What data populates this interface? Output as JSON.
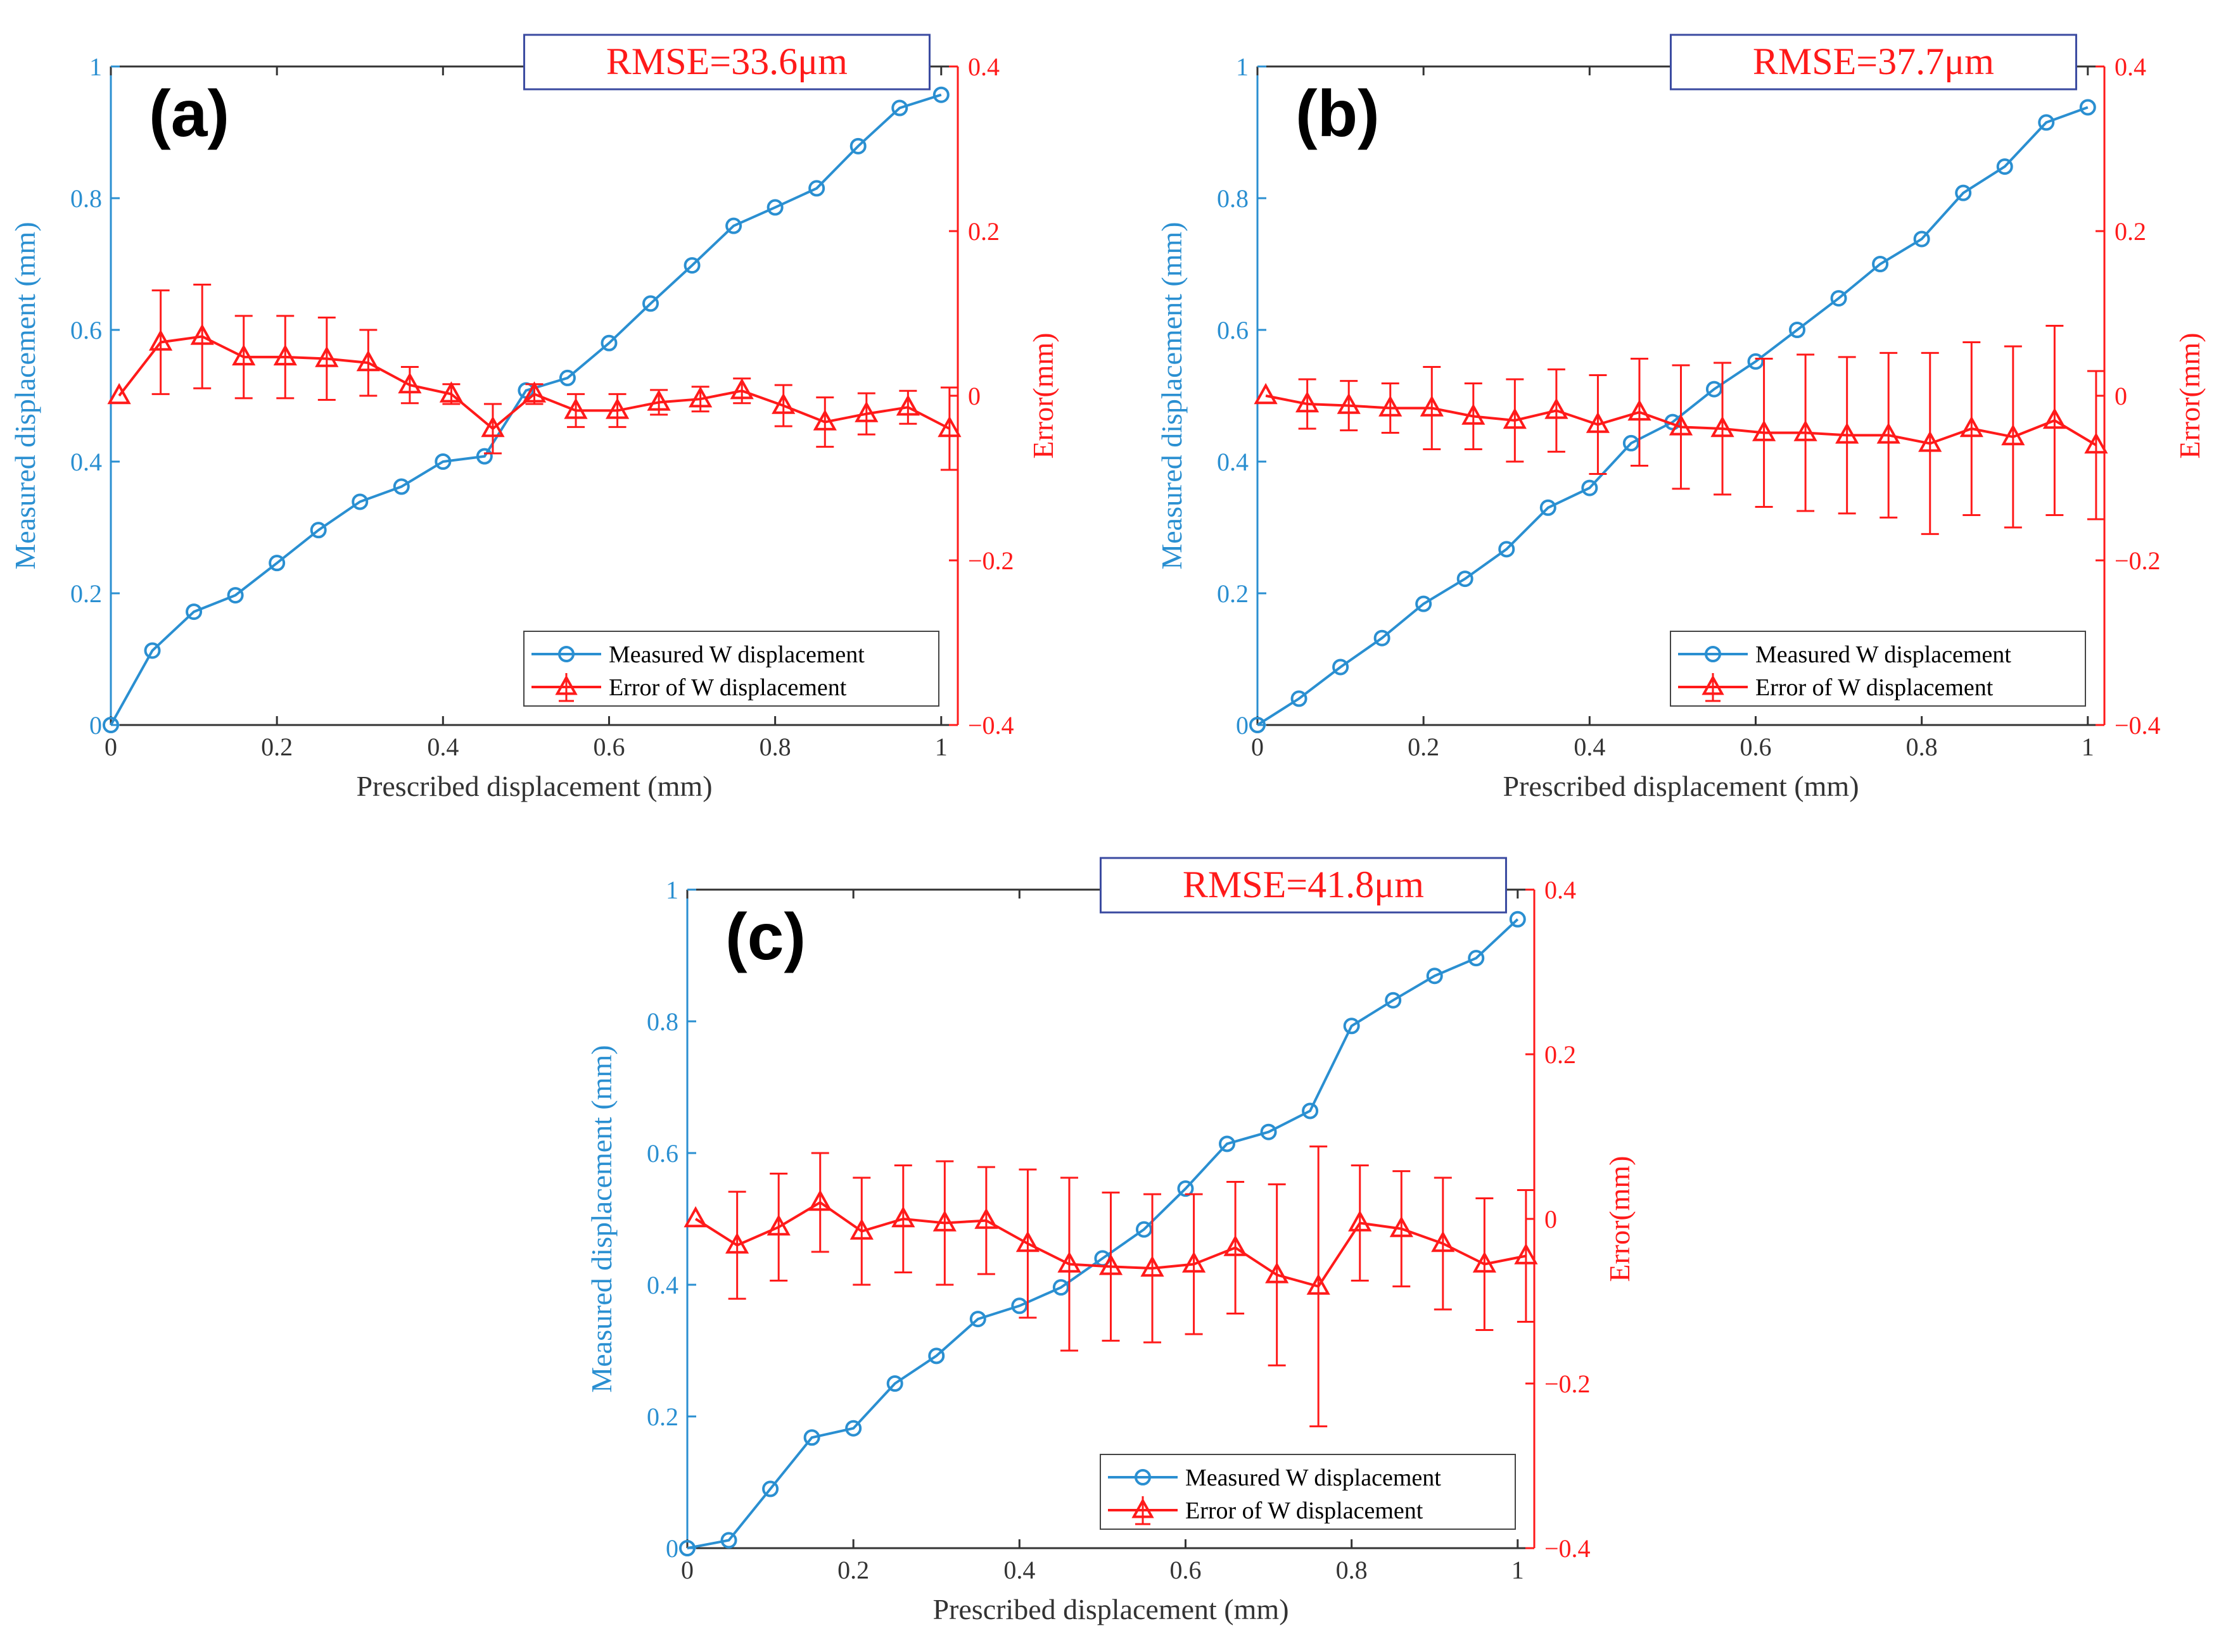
{
  "colors": {
    "measured": "#2a8fd1",
    "error": "#ff1a1a",
    "axis": "#333333",
    "legend_border": "#444444",
    "rmse_border": "#3a4aa0",
    "text": "#333333"
  },
  "chart_data": [
    {
      "panel_label": "(a)",
      "type": "line",
      "rmse_label": "RMSE=33.6μm",
      "xlabel": "Prescribed displacement (mm)",
      "ylabel_left": "Measured displacement (mm)",
      "ylabel_right": "Error(mm)",
      "xlim": [
        0,
        1.02
      ],
      "ylim_left": [
        0,
        1
      ],
      "ylim_right": [
        -0.4,
        0.4
      ],
      "x_ticks": [
        "0",
        "0.2",
        "0.4",
        "0.6",
        "0.8",
        "1"
      ],
      "y_left_ticks": [
        "0",
        "0.2",
        "0.4",
        "0.6",
        "0.8",
        "1"
      ],
      "y_right_ticks": [
        "−0.4",
        "−0.2",
        "0",
        "0.2",
        "0.4"
      ],
      "legend": {
        "position": "bottom-right",
        "entries": [
          "Measured W displacement",
          "Error of W displacement"
        ]
      },
      "x": [
        0,
        0.05,
        0.1,
        0.15,
        0.2,
        0.25,
        0.3,
        0.35,
        0.4,
        0.45,
        0.5,
        0.55,
        0.6,
        0.65,
        0.7,
        0.75,
        0.8,
        0.85,
        0.9,
        0.95,
        1.0
      ],
      "series": [
        {
          "name": "Measured W displacement",
          "axis": "left",
          "marker": "circle",
          "values": [
            0.0,
            0.113,
            0.172,
            0.197,
            0.246,
            0.296,
            0.339,
            0.362,
            0.4,
            0.408,
            0.508,
            0.527,
            0.58,
            0.64,
            0.698,
            0.758,
            0.786,
            0.815,
            0.879,
            0.937,
            0.957
          ]
        },
        {
          "name": "Error of W displacement",
          "axis": "right",
          "marker": "triangle",
          "x_offset": 0.01,
          "values": [
            0.0,
            0.065,
            0.072,
            0.047,
            0.047,
            0.045,
            0.04,
            0.013,
            0.002,
            -0.04,
            0.002,
            -0.018,
            -0.018,
            -0.008,
            -0.004,
            0.006,
            -0.012,
            -0.032,
            -0.022,
            -0.014,
            -0.04
          ],
          "error": [
            0.0,
            0.063,
            0.063,
            0.05,
            0.05,
            0.05,
            0.04,
            0.022,
            0.012,
            0.03,
            0.012,
            0.02,
            0.02,
            0.015,
            0.015,
            0.015,
            0.025,
            0.03,
            0.025,
            0.02,
            0.05
          ]
        }
      ]
    },
    {
      "panel_label": "(b)",
      "type": "line",
      "rmse_label": "RMSE=37.7μm",
      "xlabel": "Prescribed displacement (mm)",
      "ylabel_left": "Measured displacement (mm)",
      "ylabel_right": "Error(mm)",
      "xlim": [
        0,
        1.02
      ],
      "ylim_left": [
        0,
        1
      ],
      "ylim_right": [
        -0.4,
        0.4
      ],
      "x_ticks": [
        "0",
        "0.2",
        "0.4",
        "0.6",
        "0.8",
        "1"
      ],
      "y_left_ticks": [
        "0",
        "0.2",
        "0.4",
        "0.6",
        "0.8",
        "1"
      ],
      "y_right_ticks": [
        "−0.4",
        "−0.2",
        "0",
        "0.2",
        "0.4"
      ],
      "legend": {
        "position": "bottom-right",
        "entries": [
          "Measured W displacement",
          "Error of W displacement"
        ]
      },
      "x": [
        0,
        0.05,
        0.1,
        0.15,
        0.2,
        0.25,
        0.3,
        0.35,
        0.4,
        0.45,
        0.5,
        0.55,
        0.6,
        0.65,
        0.7,
        0.75,
        0.8,
        0.85,
        0.9,
        0.95,
        1.0
      ],
      "series": [
        {
          "name": "Measured W displacement",
          "axis": "left",
          "marker": "circle",
          "values": [
            0.0,
            0.04,
            0.088,
            0.132,
            0.184,
            0.222,
            0.267,
            0.33,
            0.36,
            0.428,
            0.46,
            0.51,
            0.552,
            0.6,
            0.648,
            0.7,
            0.738,
            0.808,
            0.848,
            0.915,
            0.938
          ]
        },
        {
          "name": "Error of W displacement",
          "axis": "right",
          "marker": "triangle",
          "x_offset": 0.01,
          "values": [
            0.0,
            -0.01,
            -0.012,
            -0.015,
            -0.015,
            -0.025,
            -0.03,
            -0.018,
            -0.035,
            -0.02,
            -0.038,
            -0.04,
            -0.045,
            -0.045,
            -0.048,
            -0.048,
            -0.058,
            -0.04,
            -0.05,
            -0.03,
            -0.06
          ],
          "error": [
            0.0,
            0.03,
            0.03,
            0.03,
            0.05,
            0.04,
            0.05,
            0.05,
            0.06,
            0.065,
            0.075,
            0.08,
            0.09,
            0.095,
            0.095,
            0.1,
            0.11,
            0.105,
            0.11,
            0.115,
            0.09
          ]
        }
      ]
    },
    {
      "panel_label": "(c)",
      "type": "line",
      "rmse_label": "RMSE=41.8μm",
      "xlabel": "Prescribed displacement (mm)",
      "ylabel_left": "Measured displacement (mm)",
      "ylabel_right": "Error(mm)",
      "xlim": [
        0,
        1.02
      ],
      "ylim_left": [
        0,
        1
      ],
      "ylim_right": [
        -0.4,
        0.4
      ],
      "x_ticks": [
        "0",
        "0.2",
        "0.4",
        "0.6",
        "0.8",
        "1"
      ],
      "y_left_ticks": [
        "0",
        "0.2",
        "0.4",
        "0.6",
        "0.8",
        "1"
      ],
      "y_right_ticks": [
        "−0.4",
        "−0.2",
        "0",
        "0.2",
        "0.4"
      ],
      "legend": {
        "position": "bottom-right",
        "entries": [
          "Measured W displacement",
          "Error of W displacement"
        ]
      },
      "x": [
        0,
        0.05,
        0.1,
        0.15,
        0.2,
        0.25,
        0.3,
        0.35,
        0.4,
        0.45,
        0.5,
        0.55,
        0.6,
        0.65,
        0.7,
        0.75,
        0.8,
        0.85,
        0.9,
        0.95,
        1.0
      ],
      "series": [
        {
          "name": "Measured W displacement",
          "axis": "left",
          "marker": "circle",
          "values": [
            0.0,
            0.012,
            0.09,
            0.168,
            0.182,
            0.25,
            0.292,
            0.348,
            0.368,
            0.396,
            0.44,
            0.484,
            0.546,
            0.614,
            0.632,
            0.664,
            0.793,
            0.832,
            0.869,
            0.896,
            0.955
          ]
        },
        {
          "name": "Error of W displacement",
          "axis": "right",
          "marker": "triangle",
          "x_offset": 0.01,
          "values": [
            0.0,
            -0.032,
            -0.01,
            0.02,
            -0.015,
            0.0,
            -0.005,
            -0.002,
            -0.03,
            -0.055,
            -0.058,
            -0.06,
            -0.055,
            -0.035,
            -0.068,
            -0.082,
            -0.005,
            -0.012,
            -0.03,
            -0.055,
            -0.045
          ],
          "error": [
            0.0,
            0.065,
            0.065,
            0.06,
            0.065,
            0.065,
            0.075,
            0.065,
            0.09,
            0.105,
            0.09,
            0.09,
            0.085,
            0.08,
            0.11,
            0.17,
            0.07,
            0.07,
            0.08,
            0.08,
            0.08
          ]
        }
      ]
    }
  ]
}
